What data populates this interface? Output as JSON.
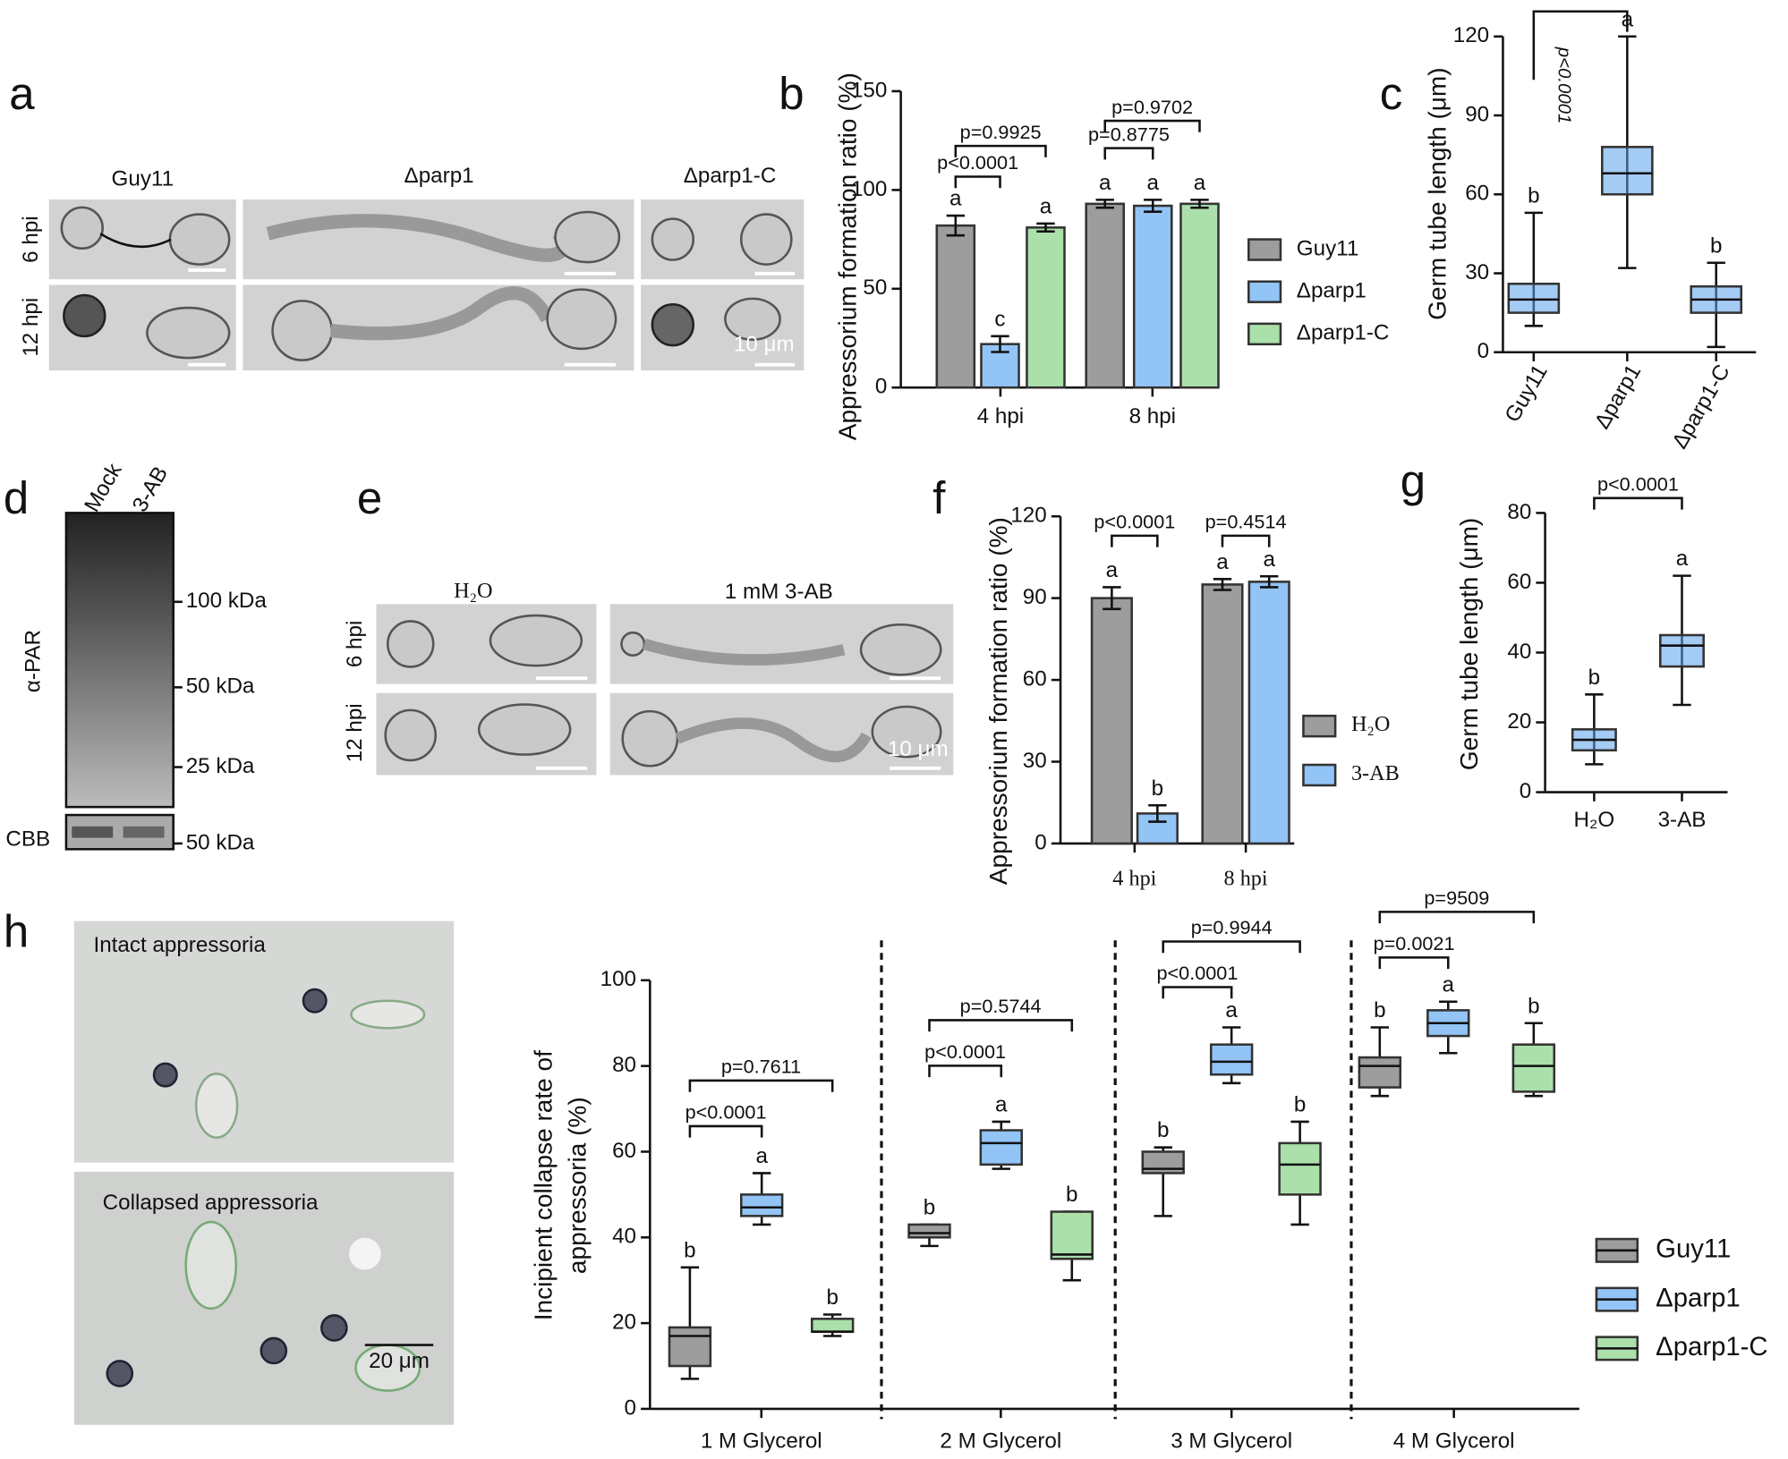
{
  "panel_labels": [
    "a",
    "b",
    "c",
    "d",
    "e",
    "f",
    "g",
    "h"
  ],
  "panel_a": {
    "columns": [
      "Guy11",
      "Δparp1",
      "Δparp1-C"
    ],
    "rows": [
      "6 hpi",
      "12 hpi"
    ],
    "scale_bar": "10 μm"
  },
  "panel_d": {
    "lanes": [
      "Mock",
      "3-AB"
    ],
    "antibody": "α-PAR",
    "markers": [
      "100 kDa",
      "50 kDa",
      "25 kDa"
    ],
    "loading": "CBB",
    "loading_marker": "50 kDa"
  },
  "panel_e": {
    "columns": [
      "H₂O",
      "1 mM 3-AB"
    ],
    "rows": [
      "6 hpi",
      "12 hpi"
    ],
    "scale_bar": "10 μm"
  },
  "panel_h": {
    "images": [
      "Intact appressoria",
      "Collapsed appressoria"
    ],
    "scale_bar": "20 μm"
  },
  "chart_data": [
    {
      "type": "bar",
      "ylabel": "Appressorium formation ratio (%)",
      "categories": [
        "4 hpi",
        "8 hpi"
      ],
      "series": [
        {
          "name": "Guy11",
          "color": "#9d9d9d",
          "values": [
            82,
            93
          ],
          "errors": [
            5,
            2
          ],
          "letters": [
            "a",
            "a"
          ]
        },
        {
          "name": "Δparp1",
          "color": "#93c4f6",
          "values": [
            22,
            92
          ],
          "errors": [
            4,
            3
          ],
          "letters": [
            "c",
            "a"
          ]
        },
        {
          "name": "Δparp1-C",
          "color": "#abe0ab",
          "values": [
            81,
            93
          ],
          "errors": [
            2,
            2
          ],
          "letters": [
            "a",
            "a"
          ]
        }
      ],
      "ylim": [
        0,
        150
      ],
      "yticks": [
        0,
        50,
        100,
        150
      ],
      "comparisons": [
        "p<0.0001",
        "p=0.9925",
        "p=0.8775",
        "p=0.9702"
      ]
    },
    {
      "type": "box",
      "ylabel": "Germ tube length (μm)",
      "categories": [
        "Guy11",
        "Δparp1",
        "Δparp1-C"
      ],
      "series": [
        {
          "color": "#5aa0ea",
          "min": [
            10,
            32,
            2
          ],
          "q1": [
            15,
            60,
            15
          ],
          "median": [
            20,
            68,
            20
          ],
          "q3": [
            26,
            78,
            25
          ],
          "max": [
            53,
            120,
            34
          ],
          "letters": [
            "b",
            "a",
            "b"
          ]
        }
      ],
      "ylim": [
        0,
        120
      ],
      "yticks": [
        0,
        30,
        60,
        90,
        120
      ],
      "comparisons": [
        "p<0.0001"
      ]
    },
    {
      "type": "bar",
      "ylabel": "Appressorium formation ratio (%)",
      "categories": [
        "4 hpi",
        "8 hpi"
      ],
      "series": [
        {
          "name": "H₂O",
          "color": "#9d9d9d",
          "values": [
            90,
            95
          ],
          "errors": [
            4,
            2
          ],
          "letters": [
            "a",
            "a"
          ]
        },
        {
          "name": "3-AB",
          "color": "#93c4f6",
          "values": [
            11,
            96
          ],
          "errors": [
            3,
            2
          ],
          "letters": [
            "b",
            "a"
          ]
        }
      ],
      "ylim": [
        0,
        120
      ],
      "yticks": [
        0,
        30,
        60,
        90,
        120
      ],
      "comparisons": [
        "p<0.0001",
        "p=0.4514"
      ]
    },
    {
      "type": "box",
      "ylabel": "Germ tube length (μm)",
      "categories": [
        "H₂O",
        "3-AB"
      ],
      "series": [
        {
          "color": "#5aa0ea",
          "min": [
            8,
            25
          ],
          "q1": [
            12,
            36
          ],
          "median": [
            15,
            42
          ],
          "q3": [
            18,
            45
          ],
          "max": [
            28,
            62
          ],
          "letters": [
            "b",
            "a"
          ]
        }
      ],
      "ylim": [
        0,
        80
      ],
      "yticks": [
        0,
        20,
        40,
        60,
        80
      ],
      "comparisons": [
        "p<0.0001"
      ]
    },
    {
      "type": "box",
      "ylabel": [
        "Incipient collapse rate of",
        "appressoria (%)"
      ],
      "categories": [
        "1 M Glycerol",
        "2 M Glycerol",
        "3 M Glycerol",
        "4 M Glycerol"
      ],
      "series": [
        {
          "name": "Guy11",
          "color": "#9d9d9d",
          "min": [
            7,
            38,
            45,
            73
          ],
          "q1": [
            10,
            40,
            55,
            75
          ],
          "median": [
            17,
            41,
            56,
            80
          ],
          "q3": [
            19,
            43,
            60,
            82
          ],
          "max": [
            33,
            43,
            61,
            89
          ],
          "letters": [
            "b",
            "b",
            "b",
            "b"
          ]
        },
        {
          "name": "Δparp1",
          "color": "#93c4f6",
          "min": [
            43,
            56,
            76,
            83
          ],
          "q1": [
            45,
            57,
            78,
            87
          ],
          "median": [
            47,
            62,
            81,
            90
          ],
          "q3": [
            50,
            65,
            85,
            93
          ],
          "max": [
            55,
            67,
            89,
            95
          ],
          "letters": [
            "a",
            "a",
            "a",
            "a"
          ]
        },
        {
          "name": "Δparp1-C",
          "color": "#abe0ab",
          "min": [
            17,
            30,
            43,
            73
          ],
          "q1": [
            18,
            35,
            50,
            74
          ],
          "median": [
            18,
            36,
            57,
            80
          ],
          "q3": [
            21,
            46,
            62,
            85
          ],
          "max": [
            22,
            46,
            67,
            90
          ],
          "letters": [
            "b",
            "b",
            "b",
            "b"
          ]
        }
      ],
      "ylim": [
        0,
        100
      ],
      "yticks": [
        0,
        20,
        40,
        60,
        80,
        100
      ],
      "comparisons": [
        "p<0.0001",
        "p=0.7611",
        "p<0.0001",
        "p=0.5744",
        "p<0.0001",
        "p=0.9944",
        "p=0.0021",
        "p=9509"
      ]
    }
  ]
}
